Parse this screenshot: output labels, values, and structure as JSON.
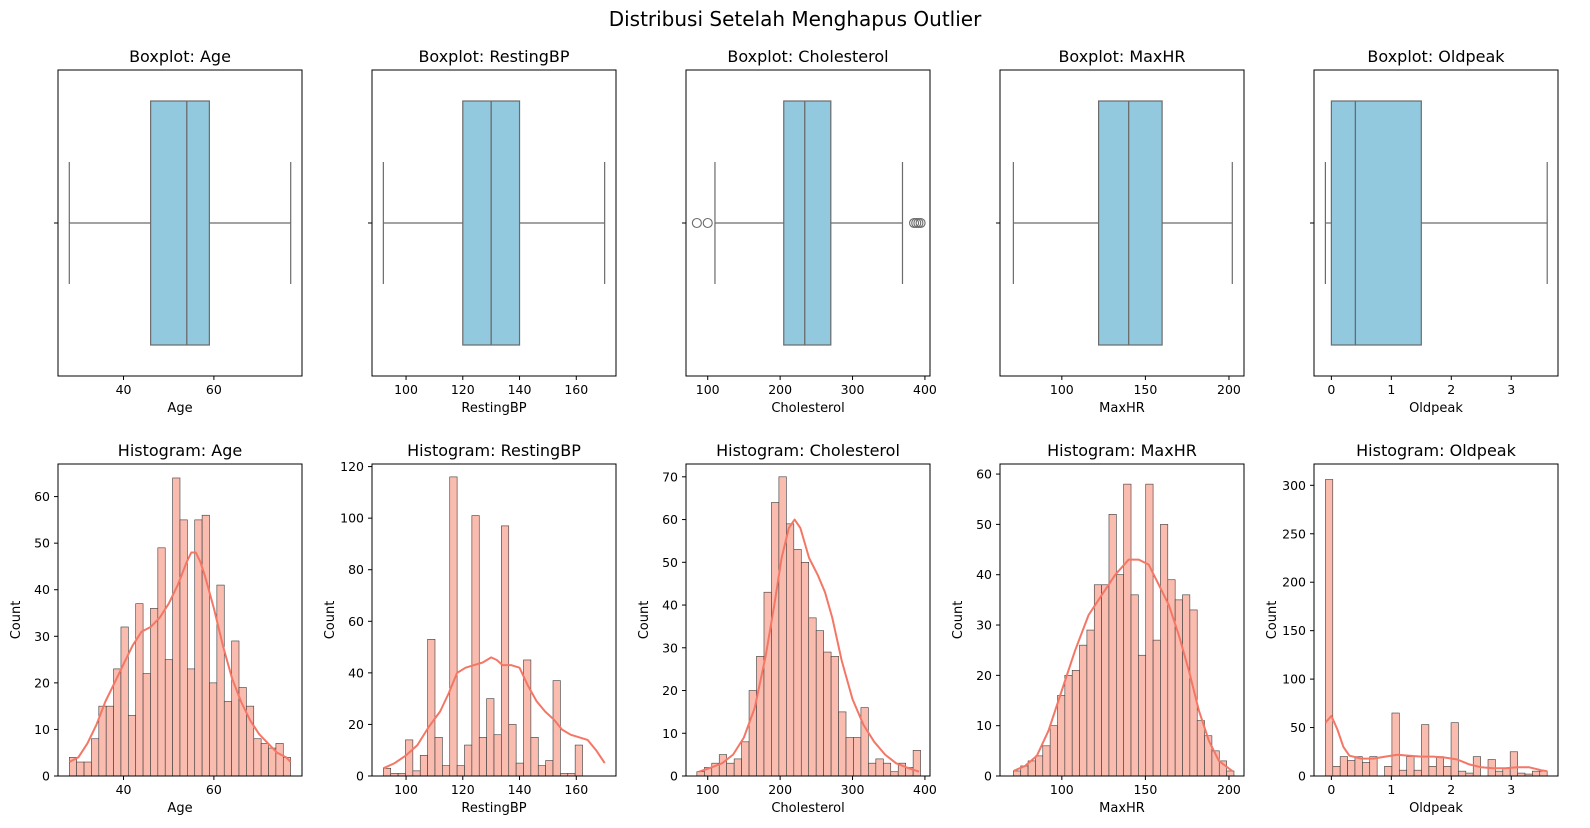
{
  "title": "Distribusi Setelah Menghapus Outlier",
  "colors": {
    "box_fill": "#92c9de",
    "box_edge": "#6b6b6b",
    "hist_fill": "#fbbcb0",
    "hist_edge": "#3a3a3a",
    "kde_line": "#f47766"
  },
  "chart_data": [
    {
      "type": "box",
      "title": "Boxplot: Age",
      "xlabel": "Age",
      "xlim": [
        25.5,
        79.5
      ],
      "xticks": [
        40,
        60
      ],
      "whisker_low": 28,
      "q1": 46,
      "median": 54,
      "q3": 59,
      "whisker_high": 77,
      "outliers": []
    },
    {
      "type": "box",
      "title": "Boxplot: RestingBP",
      "xlabel": "RestingBP",
      "xlim": [
        88,
        174
      ],
      "xticks": [
        100,
        120,
        140,
        160
      ],
      "whisker_low": 92,
      "q1": 120,
      "median": 130,
      "q3": 140,
      "whisker_high": 170,
      "outliers": []
    },
    {
      "type": "box",
      "title": "Boxplot: Cholesterol",
      "xlabel": "Cholesterol",
      "xlim": [
        70,
        407
      ],
      "xticks": [
        100,
        200,
        300,
        400
      ],
      "whisker_low": 110,
      "q1": 205,
      "median": 234,
      "q3": 270,
      "whisker_high": 369,
      "outliers": [
        85,
        100,
        385,
        388,
        391,
        394
      ]
    },
    {
      "type": "box",
      "title": "Boxplot: MaxHR",
      "xlabel": "MaxHR",
      "xlim": [
        63,
        209
      ],
      "xticks": [
        100,
        150,
        200
      ],
      "whisker_low": 71,
      "q1": 122,
      "median": 140,
      "q3": 160,
      "whisker_high": 202,
      "outliers": []
    },
    {
      "type": "box",
      "title": "Boxplot: Oldpeak",
      "xlabel": "Oldpeak",
      "xlim": [
        -0.29,
        3.78
      ],
      "xticks": [
        0,
        1,
        2,
        3
      ],
      "whisker_low": -0.1,
      "q1": 0,
      "median": 0.4,
      "q3": 1.5,
      "whisker_high": 3.6,
      "outliers": []
    },
    {
      "type": "histogram",
      "title": "Histogram: Age",
      "xlabel": "Age",
      "ylabel": "Count",
      "xlim": [
        25.5,
        79.5
      ],
      "ylim": [
        0,
        67
      ],
      "xticks": [
        40,
        60
      ],
      "yticks": [
        0,
        10,
        20,
        30,
        40,
        50,
        60
      ],
      "bin_start": 28,
      "bin_width": 1.633,
      "counts": [
        4,
        3,
        3,
        8,
        15,
        15,
        23,
        32,
        13,
        37,
        22,
        36,
        49,
        25,
        64,
        55,
        23,
        55,
        56,
        20,
        41,
        16,
        29,
        19,
        15,
        8,
        7,
        6,
        7,
        4
      ],
      "kde": [
        [
          28,
          3
        ],
        [
          30,
          4
        ],
        [
          32,
          7
        ],
        [
          34,
          11
        ],
        [
          36,
          16
        ],
        [
          38,
          20
        ],
        [
          40,
          24
        ],
        [
          42,
          28
        ],
        [
          44,
          31
        ],
        [
          46,
          32
        ],
        [
          48,
          34
        ],
        [
          50,
          37
        ],
        [
          52,
          41
        ],
        [
          54,
          46
        ],
        [
          55,
          48
        ],
        [
          56,
          48
        ],
        [
          57,
          46
        ],
        [
          58,
          43
        ],
        [
          60,
          36
        ],
        [
          62,
          28
        ],
        [
          64,
          21
        ],
        [
          66,
          16
        ],
        [
          68,
          12
        ],
        [
          70,
          9
        ],
        [
          72,
          7
        ],
        [
          74,
          5
        ],
        [
          76,
          4
        ],
        [
          77,
          3
        ]
      ]
    },
    {
      "type": "histogram",
      "title": "Histogram: RestingBP",
      "xlabel": "RestingBP",
      "ylabel": "Count",
      "xlim": [
        88,
        174
      ],
      "ylim": [
        0,
        121
      ],
      "xticks": [
        100,
        120,
        140,
        160
      ],
      "yticks": [
        0,
        20,
        40,
        60,
        80,
        100,
        120
      ],
      "bin_start": 92,
      "bin_width": 2.6,
      "counts": [
        3,
        1,
        1,
        14,
        2,
        8,
        53,
        15,
        4,
        116,
        4,
        12,
        101,
        15,
        30,
        16,
        97,
        20,
        5,
        45,
        15,
        4,
        6,
        37,
        1,
        1,
        12
      ],
      "kde": [
        [
          92,
          3
        ],
        [
          96,
          5
        ],
        [
          100,
          8
        ],
        [
          104,
          12
        ],
        [
          108,
          19
        ],
        [
          112,
          25
        ],
        [
          115,
          32
        ],
        [
          118,
          40
        ],
        [
          121,
          42
        ],
        [
          124,
          43
        ],
        [
          127,
          44
        ],
        [
          130,
          46
        ],
        [
          132,
          45
        ],
        [
          134,
          43
        ],
        [
          137,
          43
        ],
        [
          140,
          42
        ],
        [
          143,
          35
        ],
        [
          146,
          29
        ],
        [
          149,
          25
        ],
        [
          152,
          22
        ],
        [
          155,
          18
        ],
        [
          158,
          16
        ],
        [
          161,
          15
        ],
        [
          164,
          14
        ],
        [
          167,
          10
        ],
        [
          170,
          5
        ]
      ]
    },
    {
      "type": "histogram",
      "title": "Histogram: Cholesterol",
      "xlabel": "Cholesterol",
      "ylabel": "Count",
      "xlim": [
        70,
        407
      ],
      "ylim": [
        0,
        73
      ],
      "xticks": [
        100,
        200,
        300,
        400
      ],
      "yticks": [
        0,
        10,
        20,
        30,
        40,
        50,
        60,
        70
      ],
      "bin_start": 85,
      "bin_width": 10.3,
      "counts": [
        1,
        2,
        3,
        5,
        3,
        4,
        8,
        20,
        28,
        43,
        64,
        70,
        59,
        53,
        50,
        37,
        34,
        29,
        28,
        15,
        9,
        9,
        16,
        3,
        4,
        3,
        1,
        3,
        2,
        6
      ],
      "kde": [
        [
          88,
          1
        ],
        [
          105,
          2
        ],
        [
          120,
          3
        ],
        [
          135,
          5
        ],
        [
          150,
          9
        ],
        [
          165,
          16
        ],
        [
          180,
          28
        ],
        [
          192,
          40
        ],
        [
          202,
          51
        ],
        [
          212,
          58
        ],
        [
          220,
          60
        ],
        [
          228,
          58
        ],
        [
          240,
          51
        ],
        [
          252,
          47
        ],
        [
          262,
          43
        ],
        [
          272,
          37
        ],
        [
          285,
          27
        ],
        [
          300,
          18
        ],
        [
          315,
          12
        ],
        [
          330,
          8
        ],
        [
          345,
          5
        ],
        [
          360,
          3
        ],
        [
          375,
          2
        ],
        [
          392,
          1
        ]
      ]
    },
    {
      "type": "histogram",
      "title": "Histogram: MaxHR",
      "xlabel": "MaxHR",
      "ylabel": "Count",
      "xlim": [
        63,
        209
      ],
      "ylim": [
        0,
        62
      ],
      "xticks": [
        100,
        150,
        200
      ],
      "yticks": [
        0,
        10,
        20,
        30,
        40,
        50,
        60
      ],
      "bin_start": 71,
      "bin_width": 4.4,
      "counts": [
        1,
        2,
        3,
        4,
        6,
        10,
        16,
        20,
        21,
        26,
        29,
        38,
        38,
        52,
        40,
        58,
        36,
        24,
        58,
        27,
        50,
        39,
        35,
        36,
        33,
        11,
        8,
        5,
        3,
        1
      ],
      "kde": [
        [
          71,
          1
        ],
        [
          78,
          2
        ],
        [
          85,
          4
        ],
        [
          92,
          9
        ],
        [
          100,
          17
        ],
        [
          108,
          25
        ],
        [
          116,
          32
        ],
        [
          124,
          36
        ],
        [
          132,
          40
        ],
        [
          140,
          43
        ],
        [
          146,
          43
        ],
        [
          152,
          42
        ],
        [
          158,
          38
        ],
        [
          164,
          34
        ],
        [
          170,
          28
        ],
        [
          176,
          21
        ],
        [
          182,
          13
        ],
        [
          188,
          7
        ],
        [
          194,
          3
        ],
        [
          202,
          1
        ]
      ]
    },
    {
      "type": "histogram",
      "title": "Histogram: Oldpeak",
      "xlabel": "Oldpeak",
      "ylabel": "Count",
      "xlim": [
        -0.29,
        3.78
      ],
      "ylim": [
        0,
        322
      ],
      "xticks": [
        0,
        1,
        2,
        3
      ],
      "yticks": [
        0,
        50,
        100,
        150,
        200,
        250,
        300
      ],
      "bin_start": -0.1,
      "bin_width": 0.1233,
      "counts": [
        306,
        10,
        20,
        16,
        20,
        14,
        20,
        0,
        10,
        65,
        6,
        20,
        6,
        53,
        10,
        20,
        10,
        55,
        5,
        3,
        20,
        0,
        17,
        5,
        8,
        25,
        3,
        2,
        5,
        5
      ],
      "kde": [
        [
          -0.1,
          55
        ],
        [
          0,
          62
        ],
        [
          0.1,
          48
        ],
        [
          0.2,
          30
        ],
        [
          0.3,
          21
        ],
        [
          0.5,
          18
        ],
        [
          0.7,
          18
        ],
        [
          0.9,
          20
        ],
        [
          1.1,
          22
        ],
        [
          1.3,
          21
        ],
        [
          1.5,
          20
        ],
        [
          1.7,
          20
        ],
        [
          1.9,
          19
        ],
        [
          2.1,
          17
        ],
        [
          2.3,
          12
        ],
        [
          2.5,
          9
        ],
        [
          2.7,
          8
        ],
        [
          2.9,
          8
        ],
        [
          3.1,
          9
        ],
        [
          3.3,
          9
        ],
        [
          3.5,
          6
        ],
        [
          3.6,
          5
        ]
      ]
    }
  ]
}
